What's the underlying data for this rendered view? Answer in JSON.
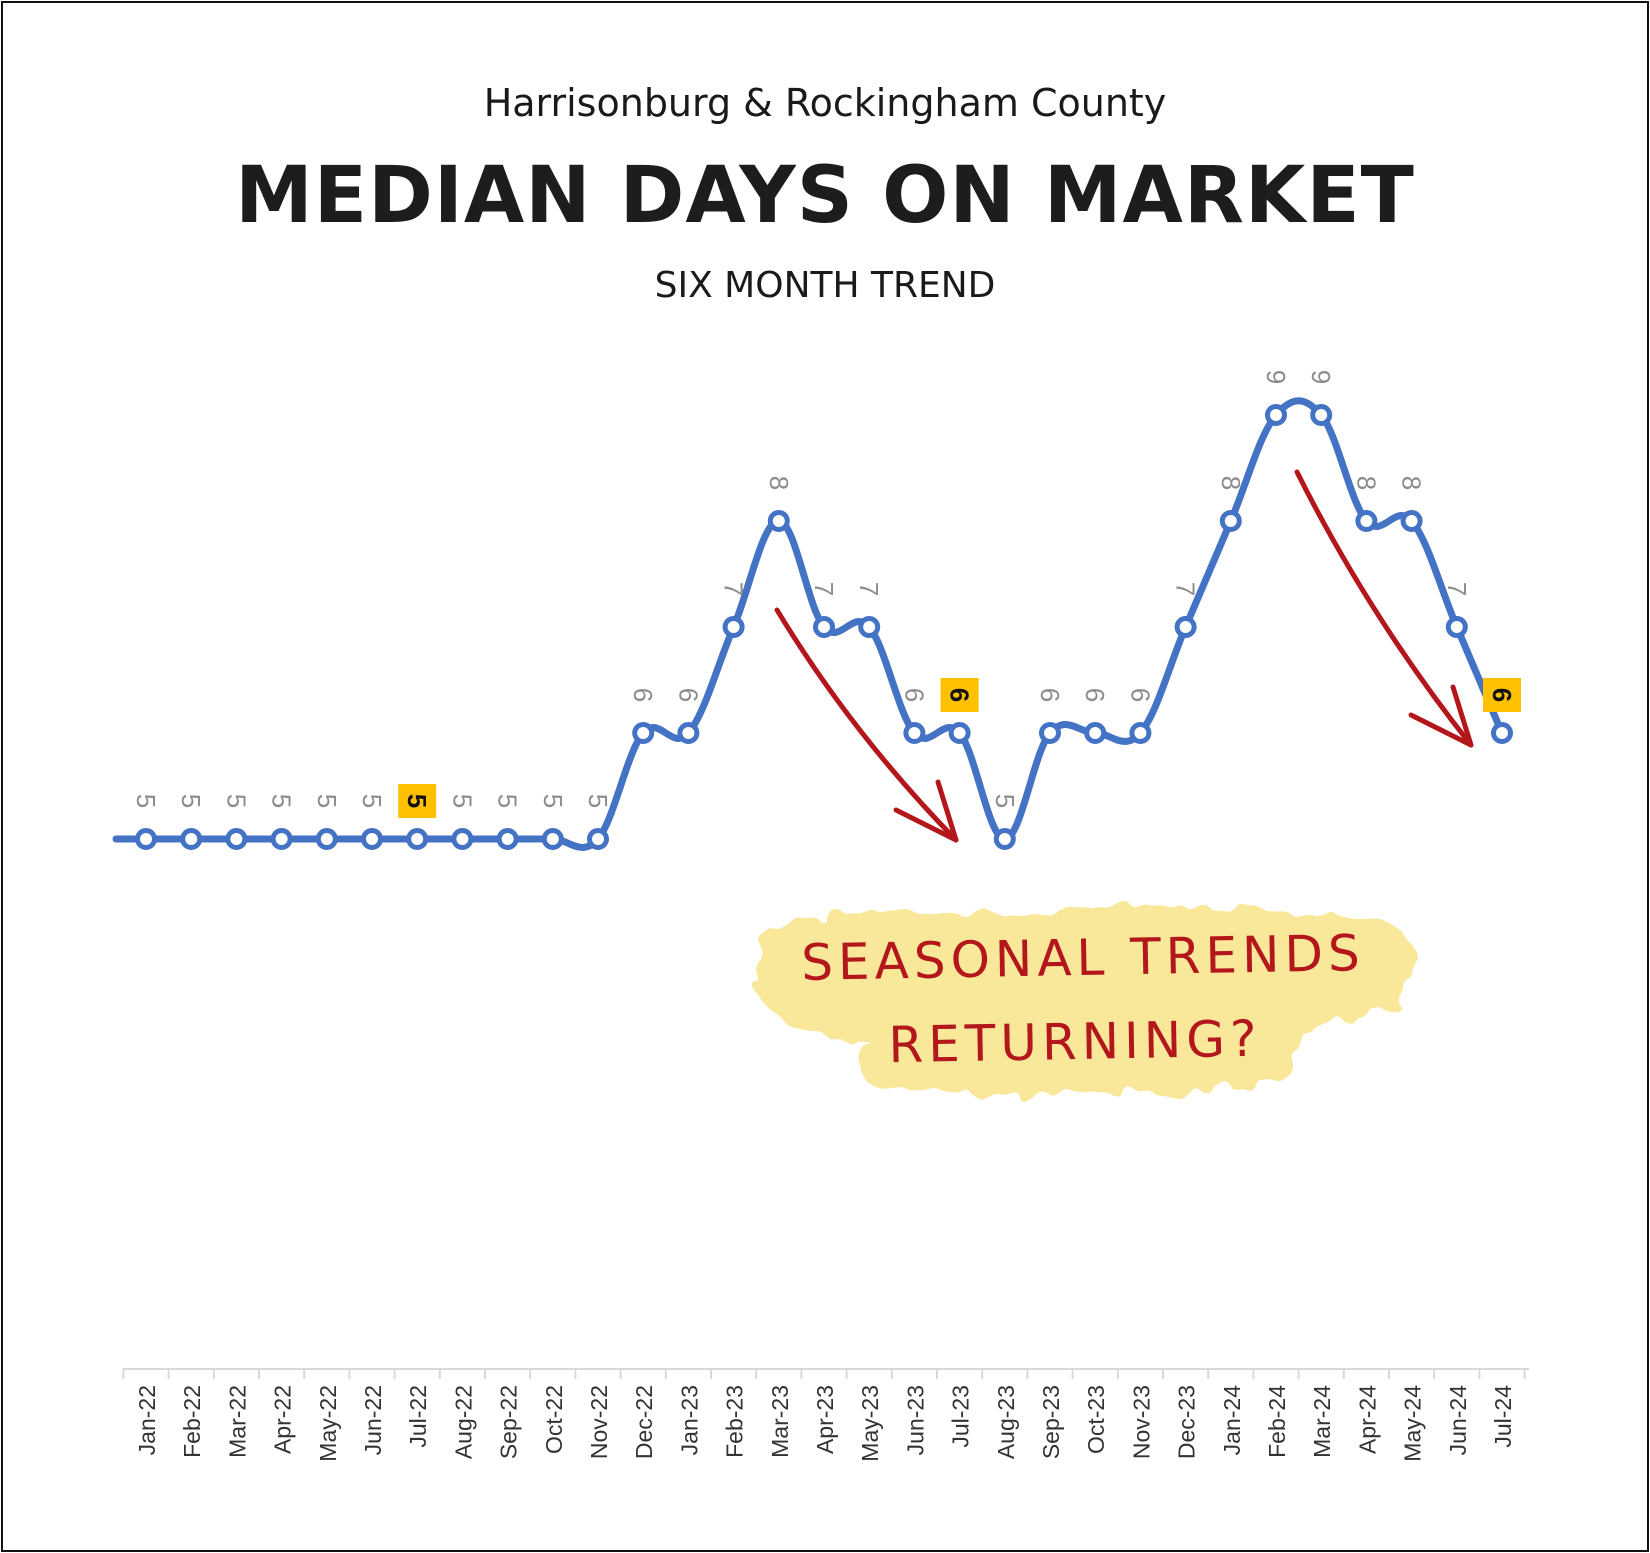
{
  "header": {
    "region": "Harrisonburg & Rockingham County",
    "title": "MEDIAN DAYS ON MARKET",
    "subtitle": "SIX MONTH TREND"
  },
  "annotation": {
    "line1": "SEASONAL TRENDS",
    "line2": "RETURNING?",
    "text_color": "#b3161b",
    "highlight_color": "#f9e79a"
  },
  "chart_data": {
    "type": "line",
    "title": "MEDIAN DAYS ON MARKET",
    "categories": [
      "Jan-22",
      "Feb-22",
      "Mar-22",
      "Apr-22",
      "May-22",
      "Jun-22",
      "Jul-22",
      "Aug-22",
      "Sep-22",
      "Oct-22",
      "Nov-22",
      "Dec-22",
      "Jan-23",
      "Feb-23",
      "Mar-23",
      "Apr-23",
      "May-23",
      "Jun-23",
      "Jul-23",
      "Aug-23",
      "Sep-23",
      "Oct-23",
      "Nov-23",
      "Dec-23",
      "Jan-24",
      "Feb-24",
      "Mar-24",
      "Apr-24",
      "May-24",
      "Jun-24",
      "Jul-24"
    ],
    "values": [
      5,
      5,
      5,
      5,
      5,
      5,
      5,
      5,
      5,
      5,
      5,
      6,
      6,
      7,
      8,
      7,
      7,
      6,
      6,
      5,
      6,
      6,
      6,
      7,
      8,
      9,
      9,
      8,
      8,
      7,
      6
    ],
    "highlighted": [
      "Jul-22",
      "Jul-23",
      "Jul-24"
    ],
    "ylim": [
      1,
      10
    ],
    "grid": false,
    "legend": "none",
    "line_color": "#4472c4",
    "label_color": "#8c8c8c",
    "highlight_color": "#ffc000"
  }
}
